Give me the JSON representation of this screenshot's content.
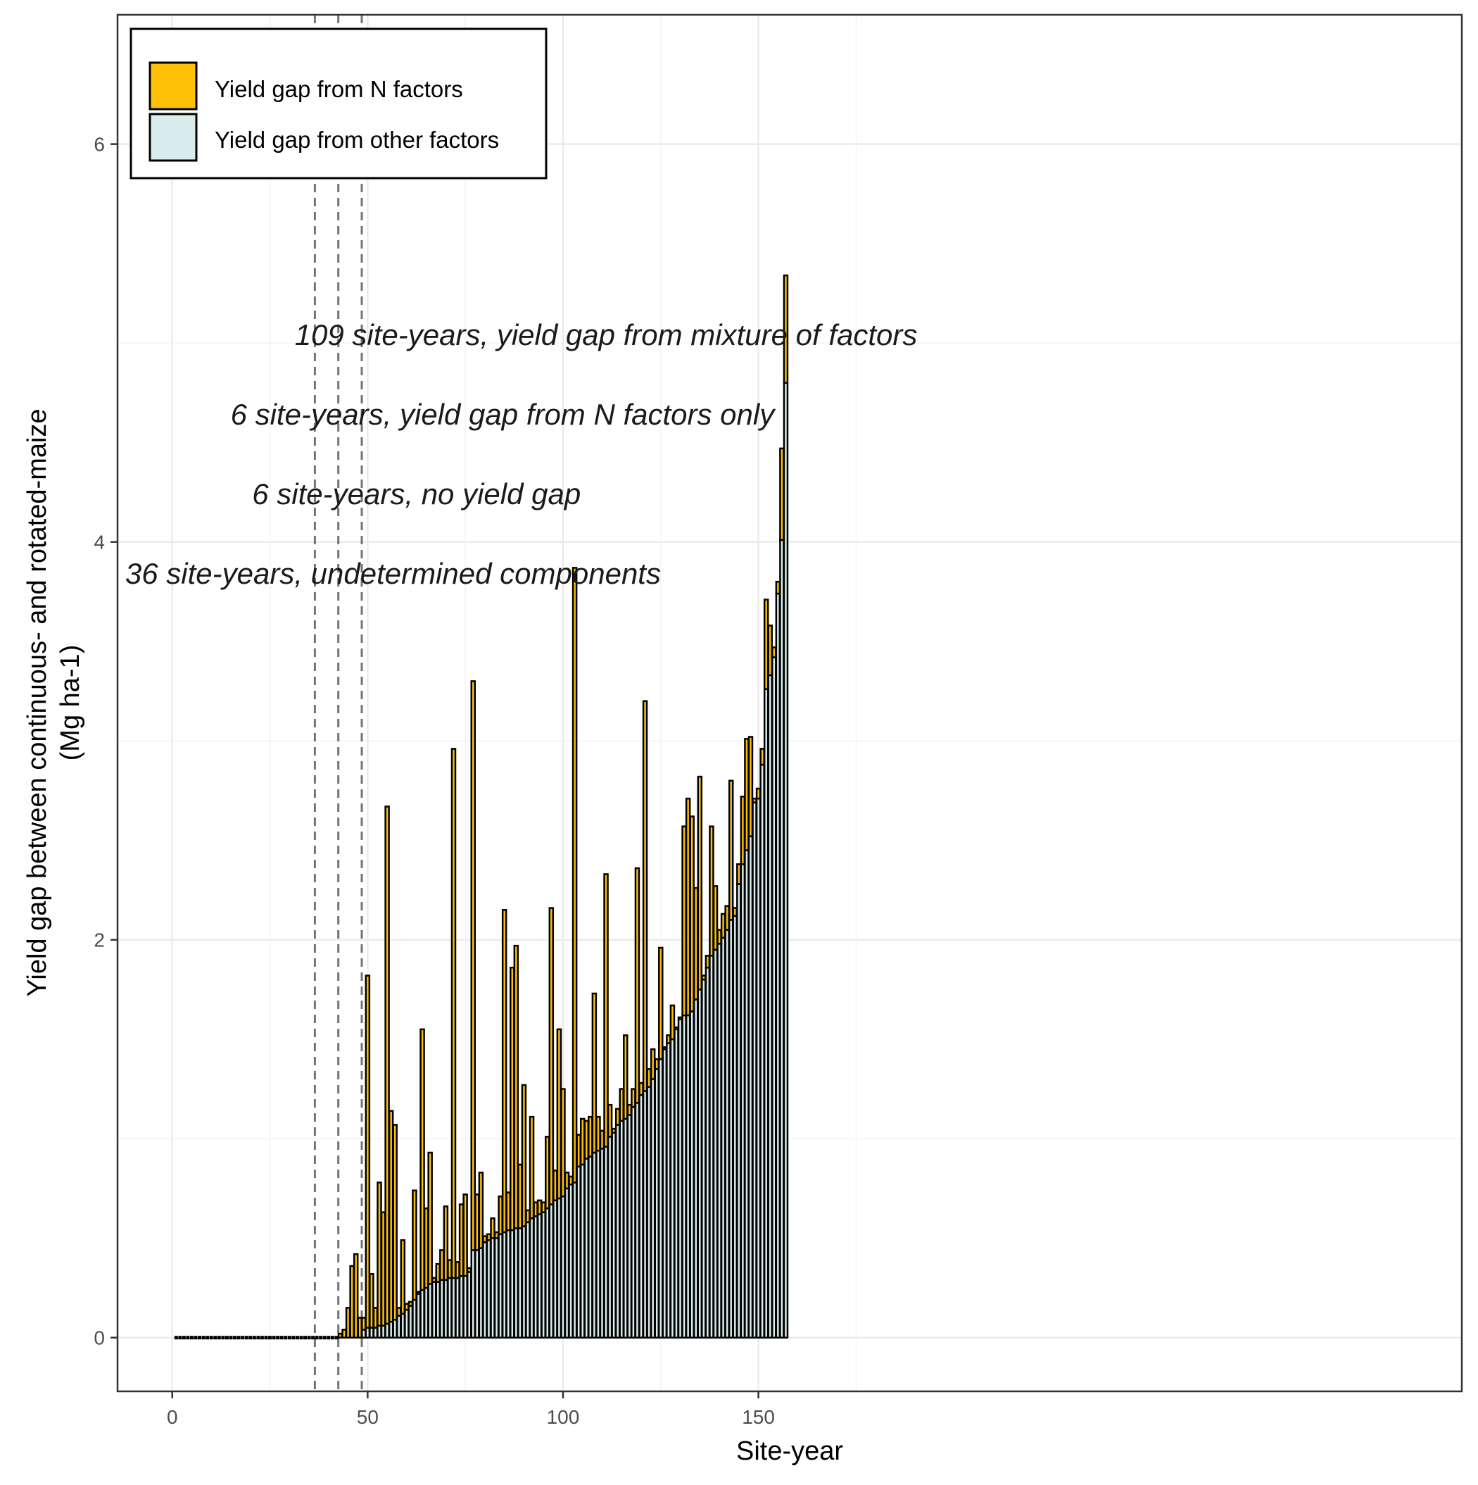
{
  "chart_data": {
    "type": "bar",
    "stacked": true,
    "xlabel": "Site-year",
    "ylabel": "Yield gap between continuous- and rotated-maize",
    "ylabel_unit": "(Mg ha-1)",
    "xlim": [
      -14,
      330
    ],
    "ylim": [
      -0.27,
      6.65
    ],
    "x_ticks": [
      0,
      50,
      100,
      150
    ],
    "y_ticks": [
      0,
      2,
      4,
      6
    ],
    "grid": true,
    "legend_position": "top-left",
    "vlines": [
      36.5,
      42.5,
      48.5
    ],
    "series": [
      {
        "name": "Yield gap from N factors",
        "color": "#FFC107"
      },
      {
        "name": "Yield gap from other factors",
        "color": "#DAEDED"
      }
    ],
    "annotations": [
      {
        "text": "109 site-years, yield gap from mixture of factors",
        "x": 111,
        "y": 4.99
      },
      {
        "text": "6 site-years, yield gap from N factors only",
        "x": 84.5,
        "y": 4.59
      },
      {
        "text": "6 site-years, no yield gap",
        "x": 62.5,
        "y": 4.19
      },
      {
        "text": "36 site-years, undetermined components",
        "x": 56.5,
        "y": 3.79
      }
    ],
    "n_zero_bars": 42,
    "bars": [
      {
        "x": 43,
        "other": 0.0,
        "n": 0.02
      },
      {
        "x": 44,
        "other": 0.0,
        "n": 0.04
      },
      {
        "x": 45,
        "other": 0.0,
        "n": 0.15
      },
      {
        "x": 46,
        "other": 0.0,
        "n": 0.36
      },
      {
        "x": 47,
        "other": 0.0,
        "n": 0.42
      },
      {
        "x": 48,
        "other": 0.0,
        "n": 0.1
      },
      {
        "x": 49,
        "other": 0.04,
        "n": 0.06
      },
      {
        "x": 50,
        "other": 0.05,
        "n": 1.77
      },
      {
        "x": 51,
        "other": 0.05,
        "n": 0.27
      },
      {
        "x": 52,
        "other": 0.05,
        "n": 0.1
      },
      {
        "x": 53,
        "other": 0.06,
        "n": 0.72
      },
      {
        "x": 54,
        "other": 0.06,
        "n": 0.57
      },
      {
        "x": 55,
        "other": 0.07,
        "n": 2.6
      },
      {
        "x": 56,
        "other": 0.08,
        "n": 1.06
      },
      {
        "x": 57,
        "other": 0.09,
        "n": 0.98
      },
      {
        "x": 58,
        "other": 0.11,
        "n": 0.04
      },
      {
        "x": 59,
        "other": 0.12,
        "n": 0.37
      },
      {
        "x": 60,
        "other": 0.14,
        "n": 0.03
      },
      {
        "x": 61,
        "other": 0.16,
        "n": 0.02
      },
      {
        "x": 62,
        "other": 0.19,
        "n": 0.55
      },
      {
        "x": 63,
        "other": 0.22,
        "n": 0.01
      },
      {
        "x": 64,
        "other": 0.24,
        "n": 1.31
      },
      {
        "x": 65,
        "other": 0.25,
        "n": 0.4
      },
      {
        "x": 66,
        "other": 0.27,
        "n": 0.66
      },
      {
        "x": 67,
        "other": 0.28,
        "n": 0.02
      },
      {
        "x": 68,
        "other": 0.28,
        "n": 0.09
      },
      {
        "x": 69,
        "other": 0.29,
        "n": 0.15
      },
      {
        "x": 70,
        "other": 0.29,
        "n": 0.37
      },
      {
        "x": 71,
        "other": 0.3,
        "n": 0.09
      },
      {
        "x": 72,
        "other": 0.3,
        "n": 2.66
      },
      {
        "x": 73,
        "other": 0.3,
        "n": 0.08
      },
      {
        "x": 74,
        "other": 0.31,
        "n": 0.36
      },
      {
        "x": 75,
        "other": 0.31,
        "n": 0.41
      },
      {
        "x": 76,
        "other": 0.33,
        "n": 0.02
      },
      {
        "x": 77,
        "other": 0.44,
        "n": 2.86
      },
      {
        "x": 78,
        "other": 0.44,
        "n": 0.28
      },
      {
        "x": 79,
        "other": 0.45,
        "n": 0.38
      },
      {
        "x": 80,
        "other": 0.48,
        "n": 0.03
      },
      {
        "x": 81,
        "other": 0.49,
        "n": 0.03
      },
      {
        "x": 82,
        "other": 0.5,
        "n": 0.1
      },
      {
        "x": 83,
        "other": 0.5,
        "n": 0.03
      },
      {
        "x": 84,
        "other": 0.52,
        "n": 0.19
      },
      {
        "x": 85,
        "other": 0.53,
        "n": 1.62
      },
      {
        "x": 86,
        "other": 0.54,
        "n": 0.19
      },
      {
        "x": 87,
        "other": 0.54,
        "n": 1.32
      },
      {
        "x": 88,
        "other": 0.55,
        "n": 1.42
      },
      {
        "x": 89,
        "other": 0.55,
        "n": 0.32
      },
      {
        "x": 90,
        "other": 0.56,
        "n": 0.71
      },
      {
        "x": 91,
        "other": 0.58,
        "n": 0.06
      },
      {
        "x": 92,
        "other": 0.6,
        "n": 0.51
      },
      {
        "x": 93,
        "other": 0.61,
        "n": 0.07
      },
      {
        "x": 94,
        "other": 0.62,
        "n": 0.07
      },
      {
        "x": 95,
        "other": 0.63,
        "n": 0.05
      },
      {
        "x": 96,
        "other": 0.65,
        "n": 0.36
      },
      {
        "x": 97,
        "other": 0.67,
        "n": 1.49
      },
      {
        "x": 98,
        "other": 0.69,
        "n": 0.15
      },
      {
        "x": 99,
        "other": 0.7,
        "n": 0.85
      },
      {
        "x": 100,
        "other": 0.71,
        "n": 0.54
      },
      {
        "x": 101,
        "other": 0.75,
        "n": 0.08
      },
      {
        "x": 102,
        "other": 0.77,
        "n": 0.04
      },
      {
        "x": 103,
        "other": 0.78,
        "n": 3.09
      },
      {
        "x": 104,
        "other": 0.86,
        "n": 0.16
      },
      {
        "x": 105,
        "other": 0.87,
        "n": 0.23
      },
      {
        "x": 106,
        "other": 0.9,
        "n": 0.19
      },
      {
        "x": 107,
        "other": 0.91,
        "n": 0.2
      },
      {
        "x": 108,
        "other": 0.93,
        "n": 0.8
      },
      {
        "x": 109,
        "other": 0.94,
        "n": 0.17
      },
      {
        "x": 110,
        "other": 0.95,
        "n": 0.09
      },
      {
        "x": 111,
        "other": 0.96,
        "n": 1.37
      },
      {
        "x": 112,
        "other": 1.01,
        "n": 0.16
      },
      {
        "x": 113,
        "other": 1.03,
        "n": 0.02
      },
      {
        "x": 114,
        "other": 1.07,
        "n": 0.08
      },
      {
        "x": 115,
        "other": 1.09,
        "n": 0.16
      },
      {
        "x": 116,
        "other": 1.1,
        "n": 0.42
      },
      {
        "x": 117,
        "other": 1.12,
        "n": 0.05
      },
      {
        "x": 118,
        "other": 1.16,
        "n": 0.09
      },
      {
        "x": 119,
        "other": 1.18,
        "n": 1.18
      },
      {
        "x": 120,
        "other": 1.22,
        "n": 0.06
      },
      {
        "x": 121,
        "other": 1.24,
        "n": 1.96
      },
      {
        "x": 122,
        "other": 1.26,
        "n": 0.09
      },
      {
        "x": 123,
        "other": 1.3,
        "n": 0.15
      },
      {
        "x": 124,
        "other": 1.35,
        "n": 0.05
      },
      {
        "x": 125,
        "other": 1.4,
        "n": 0.56
      },
      {
        "x": 126,
        "other": 1.45,
        "n": 0.01
      },
      {
        "x": 127,
        "other": 1.48,
        "n": 0.04
      },
      {
        "x": 128,
        "other": 1.5,
        "n": 0.17
      },
      {
        "x": 129,
        "other": 1.55,
        "n": 0.01
      },
      {
        "x": 130,
        "other": 1.6,
        "n": 0.01
      },
      {
        "x": 131,
        "other": 1.62,
        "n": 0.95
      },
      {
        "x": 132,
        "other": 1.62,
        "n": 1.09
      },
      {
        "x": 133,
        "other": 1.64,
        "n": 0.98
      },
      {
        "x": 134,
        "other": 1.7,
        "n": 0.56
      },
      {
        "x": 135,
        "other": 1.75,
        "n": 1.07
      },
      {
        "x": 136,
        "other": 1.8,
        "n": 0.02
      },
      {
        "x": 137,
        "other": 1.86,
        "n": 0.06
      },
      {
        "x": 138,
        "other": 1.92,
        "n": 0.65
      },
      {
        "x": 139,
        "other": 1.95,
        "n": 0.32
      },
      {
        "x": 140,
        "other": 1.98,
        "n": 0.07
      },
      {
        "x": 141,
        "other": 2.01,
        "n": 0.12
      },
      {
        "x": 142,
        "other": 2.05,
        "n": 0.12
      },
      {
        "x": 143,
        "other": 2.1,
        "n": 0.7
      },
      {
        "x": 144,
        "other": 2.12,
        "n": 0.04
      },
      {
        "x": 145,
        "other": 2.28,
        "n": 0.1
      },
      {
        "x": 146,
        "other": 2.38,
        "n": 0.34
      },
      {
        "x": 147,
        "other": 2.45,
        "n": 0.56
      },
      {
        "x": 148,
        "other": 2.52,
        "n": 0.5
      },
      {
        "x": 149,
        "other": 2.69,
        "n": 0.02
      },
      {
        "x": 150,
        "other": 2.71,
        "n": 0.05
      },
      {
        "x": 151,
        "other": 2.88,
        "n": 0.08
      },
      {
        "x": 152,
        "other": 3.26,
        "n": 0.45
      },
      {
        "x": 153,
        "other": 3.33,
        "n": 0.25
      },
      {
        "x": 154,
        "other": 3.42,
        "n": 0.05
      },
      {
        "x": 155,
        "other": 3.74,
        "n": 0.06
      },
      {
        "x": 156,
        "other": 4.01,
        "n": 0.46
      },
      {
        "x": 157,
        "other": 4.8,
        "n": 0.54
      }
    ]
  }
}
